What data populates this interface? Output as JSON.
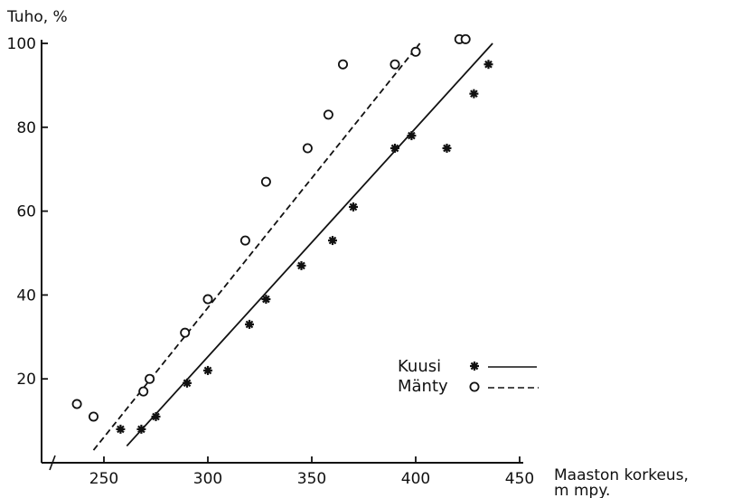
{
  "chart_data": {
    "type": "scatter",
    "ylabel": "Tuho, %",
    "xlabel_line1": "Maaston korkeus,",
    "xlabel_line2": "m mpy.",
    "xticks": [
      250,
      300,
      350,
      400,
      450
    ],
    "yticks": [
      20,
      40,
      60,
      80,
      100
    ],
    "xlim": [
      220,
      460
    ],
    "ylim": [
      0,
      100
    ],
    "grid": false,
    "legend_position": "bottom-right",
    "series": [
      {
        "name": "Kuusi",
        "marker": "asterisk",
        "line_style": "solid",
        "points": [
          {
            "x": 258,
            "y": 8
          },
          {
            "x": 268,
            "y": 8
          },
          {
            "x": 275,
            "y": 11
          },
          {
            "x": 290,
            "y": 19
          },
          {
            "x": 300,
            "y": 22
          },
          {
            "x": 320,
            "y": 33
          },
          {
            "x": 328,
            "y": 39
          },
          {
            "x": 345,
            "y": 47
          },
          {
            "x": 360,
            "y": 53
          },
          {
            "x": 370,
            "y": 61
          },
          {
            "x": 390,
            "y": 75
          },
          {
            "x": 398,
            "y": 78
          },
          {
            "x": 415,
            "y": 75
          },
          {
            "x": 428,
            "y": 88
          },
          {
            "x": 435,
            "y": 95
          }
        ],
        "fit_line": [
          {
            "x": 261,
            "y": 4
          },
          {
            "x": 437,
            "y": 100
          }
        ]
      },
      {
        "name": "Mänty",
        "marker": "circle",
        "line_style": "dashed",
        "points": [
          {
            "x": 237,
            "y": 14
          },
          {
            "x": 245,
            "y": 11
          },
          {
            "x": 269,
            "y": 17
          },
          {
            "x": 272,
            "y": 20
          },
          {
            "x": 289,
            "y": 31
          },
          {
            "x": 300,
            "y": 39
          },
          {
            "x": 318,
            "y": 53
          },
          {
            "x": 328,
            "y": 67
          },
          {
            "x": 348,
            "y": 75
          },
          {
            "x": 358,
            "y": 83
          },
          {
            "x": 365,
            "y": 95
          },
          {
            "x": 390,
            "y": 95
          },
          {
            "x": 400,
            "y": 98
          },
          {
            "x": 421,
            "y": 101
          },
          {
            "x": 424,
            "y": 101
          }
        ],
        "fit_line": [
          {
            "x": 245,
            "y": 3
          },
          {
            "x": 402,
            "y": 100
          }
        ]
      }
    ]
  }
}
